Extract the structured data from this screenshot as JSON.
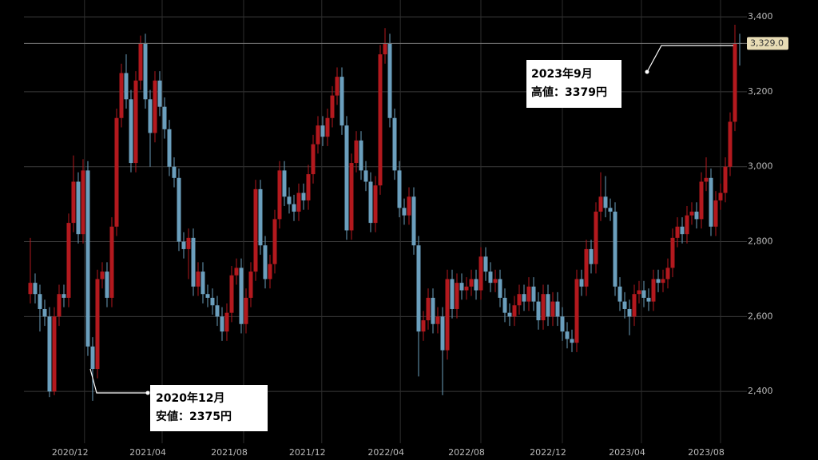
{
  "chart_data": {
    "type": "candlestick",
    "up_color": "#b3191e",
    "down_color": "#6b9fbd",
    "ylim": [
      2217,
      3445
    ],
    "yticks": [
      {
        "value": 2400,
        "label": "2,400"
      },
      {
        "value": 2600,
        "label": "2,600"
      },
      {
        "value": 2800,
        "label": "2,800"
      },
      {
        "value": 3000,
        "label": "3,000"
      },
      {
        "value": 3200,
        "label": "3,200"
      },
      {
        "value": 3400,
        "label": "3,400"
      }
    ],
    "xlim": [
      -1.33,
      149.5
    ],
    "xticks": [
      {
        "value": 8.3,
        "label": "2020/12"
      },
      {
        "value": 24.5,
        "label": "2021/04"
      },
      {
        "value": 41.5,
        "label": "2021/08"
      },
      {
        "value": 57.8,
        "label": "2021/12"
      },
      {
        "value": 74.2,
        "label": "2022/04"
      },
      {
        "value": 91,
        "label": "2022/08"
      },
      {
        "value": 108,
        "label": "2022/12"
      },
      {
        "value": 124.5,
        "label": "2023/04"
      },
      {
        "value": 141,
        "label": "2023/08"
      }
    ],
    "grid": true,
    "open": [
      2660,
      2690,
      2660,
      2620,
      2600,
      2400,
      2600,
      2660,
      2650,
      2850,
      2960,
      2820,
      2990,
      2520,
      2460,
      2700,
      2720,
      2650,
      2840,
      3130,
      3250,
      3180,
      3010,
      3230,
      3330,
      3180,
      3090,
      3230,
      3160,
      3100,
      3000,
      2970,
      2800,
      2780,
      2810,
      2680,
      2720,
      2660,
      2650,
      2630,
      2600,
      2560,
      2610,
      2710,
      2730,
      2580,
      2650,
      2720,
      2940,
      2790,
      2700,
      2740,
      2860,
      2990,
      2920,
      2900,
      2880,
      2930,
      2910,
      2980,
      3060,
      3110,
      3080,
      3130,
      3190,
      3240,
      3110,
      2830,
      3010,
      3070,
      2990,
      2960,
      2850,
      2950,
      3300,
      3330,
      3130,
      2990,
      2890,
      2870,
      2920,
      2790,
      2560,
      2590,
      2650,
      2580,
      2600,
      2510,
      2700,
      2620,
      2690,
      2670,
      2680,
      2700,
      2670,
      2760,
      2720,
      2690,
      2700,
      2650,
      2610,
      2600,
      2630,
      2660,
      2640,
      2680,
      2640,
      2590,
      2660,
      2600,
      2640,
      2600,
      2560,
      2540,
      2530,
      2700,
      2680,
      2780,
      2740,
      2880,
      2920,
      2890,
      2880,
      2680,
      2640,
      2620,
      2600,
      2660,
      2670,
      2650,
      2640,
      2700,
      2690,
      2700,
      2730,
      2810,
      2840,
      2820,
      2870,
      2880,
      2860,
      2960,
      2970,
      2840,
      2910,
      2930,
      3000,
      3120,
      3330
    ],
    "high": [
      2810,
      2715,
      2685,
      2645,
      2625,
      2625,
      2685,
      2685,
      2875,
      3030,
      2985,
      3020,
      3015,
      2545,
      2725,
      2745,
      2745,
      2865,
      3155,
      3275,
      3300,
      3205,
      3255,
      3350,
      3355,
      3205,
      3255,
      3255,
      3185,
      3125,
      3025,
      2995,
      2825,
      2835,
      2835,
      2745,
      2745,
      2685,
      2675,
      2655,
      2625,
      2635,
      2735,
      2755,
      2755,
      2675,
      2745,
      2965,
      2965,
      2815,
      2765,
      2885,
      3015,
      3015,
      2945,
      2925,
      2955,
      2955,
      3005,
      3085,
      3135,
      3135,
      3155,
      3215,
      3265,
      3265,
      3135,
      3035,
      3095,
      3095,
      3015,
      2985,
      2975,
      3325,
      3370,
      3355,
      3155,
      3015,
      2915,
      2945,
      2945,
      2815,
      2615,
      2675,
      2675,
      2625,
      2625,
      2725,
      2725,
      2715,
      2715,
      2705,
      2725,
      2725,
      2785,
      2785,
      2745,
      2725,
      2725,
      2675,
      2635,
      2655,
      2685,
      2685,
      2705,
      2705,
      2665,
      2685,
      2685,
      2665,
      2665,
      2625,
      2585,
      2565,
      2725,
      2725,
      2805,
      2805,
      2905,
      2985,
      2975,
      2915,
      2905,
      2705,
      2665,
      2645,
      2685,
      2695,
      2695,
      2675,
      2725,
      2725,
      2725,
      2755,
      2835,
      2865,
      2865,
      2895,
      2905,
      2905,
      2985,
      3025,
      2995,
      2935,
      2955,
      3025,
      3145,
      3379,
      3355
    ],
    "low": [
      2635,
      2635,
      2560,
      2575,
      2385,
      2390,
      2575,
      2625,
      2625,
      2825,
      2795,
      2795,
      2495,
      2375,
      2435,
      2675,
      2625,
      2625,
      2815,
      3105,
      3155,
      2985,
      2985,
      3205,
      3155,
      3000,
      3065,
      3135,
      3075,
      2975,
      2945,
      2775,
      2755,
      2700,
      2655,
      2655,
      2635,
      2625,
      2605,
      2575,
      2535,
      2535,
      2585,
      2685,
      2555,
      2555,
      2625,
      2695,
      2765,
      2675,
      2675,
      2715,
      2835,
      2895,
      2875,
      2855,
      2855,
      2885,
      2885,
      2955,
      3035,
      3055,
      3055,
      3105,
      3165,
      3085,
      2805,
      2805,
      2985,
      2965,
      2935,
      2825,
      2825,
      2925,
      3275,
      3105,
      2965,
      2865,
      2845,
      2845,
      2765,
      2440,
      2535,
      2565,
      2555,
      2555,
      2390,
      2485,
      2595,
      2595,
      2645,
      2645,
      2655,
      2645,
      2645,
      2695,
      2665,
      2665,
      2625,
      2585,
      2575,
      2575,
      2605,
      2615,
      2615,
      2615,
      2565,
      2565,
      2575,
      2575,
      2575,
      2535,
      2515,
      2505,
      2505,
      2655,
      2655,
      2715,
      2715,
      2855,
      2865,
      2855,
      2655,
      2615,
      2595,
      2550,
      2575,
      2635,
      2625,
      2615,
      2615,
      2665,
      2665,
      2675,
      2705,
      2785,
      2795,
      2795,
      2845,
      2835,
      2835,
      2935,
      2815,
      2815,
      2885,
      2905,
      2975,
      3095,
      3270
    ],
    "close": [
      2690,
      2660,
      2620,
      2600,
      2400,
      2600,
      2660,
      2650,
      2850,
      2960,
      2820,
      2990,
      2520,
      2460,
      2700,
      2720,
      2650,
      2840,
      3130,
      3250,
      3180,
      3010,
      3230,
      3330,
      3180,
      3090,
      3230,
      3160,
      3100,
      3000,
      2970,
      2800,
      2780,
      2810,
      2680,
      2720,
      2660,
      2650,
      2630,
      2600,
      2560,
      2610,
      2710,
      2730,
      2580,
      2650,
      2720,
      2940,
      2790,
      2700,
      2740,
      2860,
      2990,
      2920,
      2900,
      2880,
      2930,
      2910,
      2980,
      3060,
      3110,
      3080,
      3130,
      3190,
      3240,
      3110,
      2830,
      3010,
      3070,
      2990,
      2960,
      2850,
      2950,
      3300,
      3330,
      3130,
      2990,
      2890,
      2870,
      2920,
      2790,
      2560,
      2590,
      2650,
      2580,
      2600,
      2510,
      2700,
      2620,
      2690,
      2670,
      2680,
      2700,
      2670,
      2760,
      2720,
      2690,
      2700,
      2650,
      2610,
      2600,
      2630,
      2660,
      2640,
      2680,
      2640,
      2590,
      2660,
      2600,
      2640,
      2600,
      2560,
      2540,
      2530,
      2700,
      2680,
      2780,
      2740,
      2880,
      2920,
      2890,
      2880,
      2680,
      2640,
      2620,
      2600,
      2660,
      2670,
      2650,
      2640,
      2700,
      2690,
      2700,
      2730,
      2810,
      2840,
      2820,
      2870,
      2880,
      2860,
      2960,
      2970,
      2840,
      2910,
      2930,
      3000,
      3120,
      3330,
      3329
    ],
    "last_label": "3,329.0",
    "annotations": [
      {
        "lines": [
          "2020年12月",
          "安値：2375円"
        ]
      },
      {
        "lines": [
          "2023年9月",
          "高値：3379円"
        ]
      }
    ]
  }
}
